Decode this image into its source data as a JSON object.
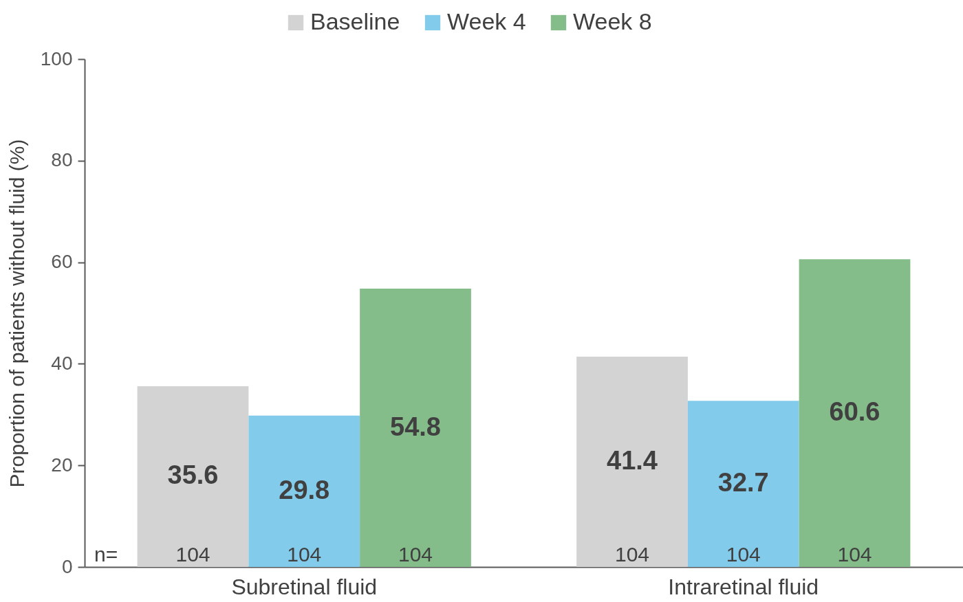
{
  "chart_data": {
    "type": "bar",
    "ylabel": "Proportion of patients without fluid (%)",
    "categories": [
      "Subretinal fluid",
      "Intraretinal fluid"
    ],
    "series": [
      {
        "name": "Baseline",
        "color": "#d3d3d3",
        "values": [
          35.6,
          41.4
        ]
      },
      {
        "name": "Week 4",
        "color": "#83cbeb",
        "values": [
          29.8,
          32.7
        ]
      },
      {
        "name": "Week 8",
        "color": "#84bd89",
        "values": [
          54.8,
          60.6
        ]
      }
    ],
    "ylim": [
      0,
      100
    ],
    "yticks": [
      0,
      20,
      40,
      60,
      80,
      100
    ],
    "grid": false,
    "legend": "top",
    "data_labels": true,
    "annotations": [
      "n=",
      "104",
      "104",
      "104",
      "104",
      "104",
      "104"
    ]
  }
}
